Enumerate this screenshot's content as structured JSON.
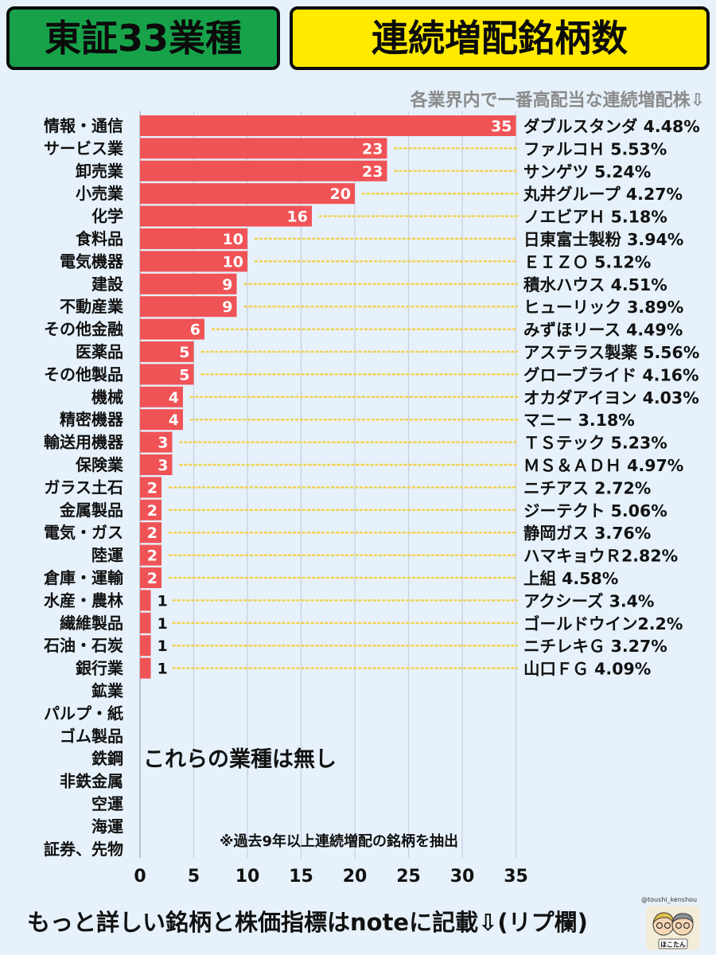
{
  "title_left": "東証33業種",
  "title_right": "連続増配銘柄数",
  "subtitle": "各業界内で一番高配当な連続増配株⇩",
  "note_none": "これらの業種は無し",
  "note_criteria": "※過去9年以上連続増配の銘柄を抽出",
  "footer": "もっと詳しい銘柄と株価指標はnoteに記載⇩(リプ欄)",
  "handle": "@toushi_kenshou",
  "mascot_label": "ほこたん",
  "colors": {
    "bar": "#f05356",
    "title_left_bg": "#17a24a",
    "title_right_bg": "#ffea00",
    "background": "#e6f1fb",
    "leader": "#f2d24b"
  },
  "icons": {
    "mascot": "two-character-avatar-icon"
  },
  "chart_data": {
    "type": "bar",
    "orientation": "horizontal",
    "categories": [
      "情報・通信",
      "サービス業",
      "卸売業",
      "小売業",
      "化学",
      "食料品",
      "電気機器",
      "建設",
      "不動産業",
      "その他金融",
      "医薬品",
      "その他製品",
      "機械",
      "精密機器",
      "輸送用機器",
      "保険業",
      "ガラス土石",
      "金属製品",
      "電気・ガス",
      "陸運",
      "倉庫・運輸",
      "水産・農林",
      "繊維製品",
      "石油・石炭",
      "銀行業",
      "鉱業",
      "パルプ・紙",
      "ゴム製品",
      "鉄鋼",
      "非鉄金属",
      "空運",
      "海運",
      "証券、先物"
    ],
    "values": [
      35,
      23,
      23,
      20,
      16,
      10,
      10,
      9,
      9,
      6,
      5,
      5,
      4,
      4,
      3,
      3,
      2,
      2,
      2,
      2,
      2,
      1,
      1,
      1,
      1,
      null,
      null,
      null,
      null,
      null,
      null,
      null,
      null
    ],
    "annotations": [
      "ダブルスタンダ 4.48%",
      "ファルコＨ 5.53%",
      "サンゲツ 5.24%",
      "丸井グループ 4.27%",
      "ノエビアＨ 5.18%",
      "日東富士製粉 3.94%",
      "ＥＩＺＯ 5.12%",
      "積水ハウス 4.51%",
      "ヒューリック 3.89%",
      "みずほリース 4.49%",
      "アステラス製薬 5.56%",
      "グローブライド 4.16%",
      "オカダアイヨン 4.03%",
      "マニー 3.18%",
      "ＴＳテック 5.23%",
      "ＭＳ＆ＡＤＨ 4.97%",
      "ニチアス 2.72%",
      "ジーテクト 5.06%",
      "静岡ガス 3.76%",
      "ハマキョウＲ2.82%",
      "上組 4.58%",
      "アクシーズ 3.4%",
      "ゴールドウイン2.2%",
      "ニチレキＧ 3.27%",
      "山口ＦＧ 4.09%"
    ],
    "xticks": [
      "0",
      "5",
      "10",
      "15",
      "20",
      "25",
      "30",
      "35"
    ],
    "xlim": [
      0,
      35
    ],
    "grid": true
  }
}
